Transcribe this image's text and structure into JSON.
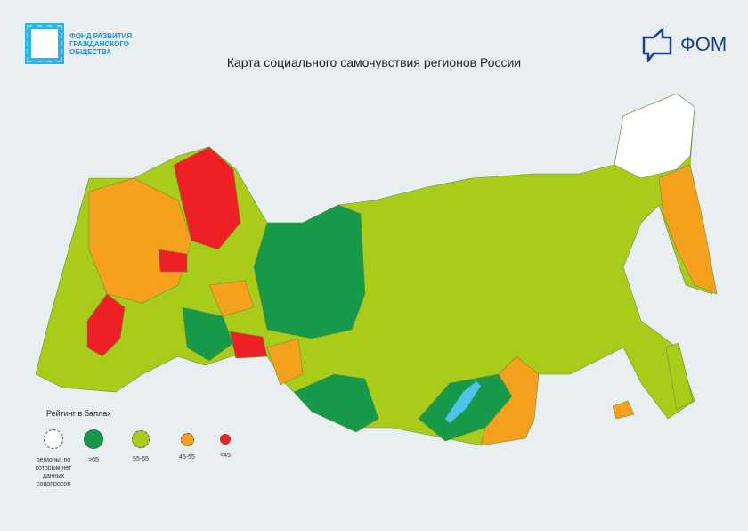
{
  "header": {
    "fund_logo_text": [
      "Фонд развития",
      "гражданского",
      "общества"
    ],
    "title": "Карта социального самочувствия регионов России",
    "fom_logo_text": "ФОМ"
  },
  "legend": {
    "title": "Рейтинг в баллах",
    "items": [
      {
        "label": "регионы, по которым нет данных соцопросов",
        "color": "#ffffff"
      },
      {
        "label": ">65",
        "color": "#17994a"
      },
      {
        "label": "55-65",
        "color": "#a9cc1b"
      },
      {
        "label": "45-55",
        "color": "#f5a11e"
      },
      {
        "label": "<45",
        "color": "#ee2026"
      }
    ]
  },
  "colors": {
    "lake": "#4fc3ea",
    "border": "#6a8f3a"
  }
}
